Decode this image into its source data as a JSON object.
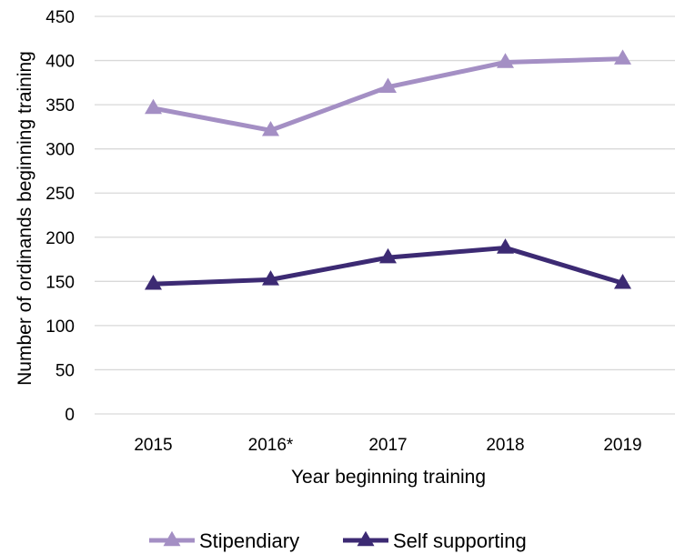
{
  "chart_data": {
    "type": "line",
    "categories": [
      "2015",
      "2016*",
      "2017",
      "2018",
      "2019"
    ],
    "series": [
      {
        "name": "Stipendiary",
        "values": [
          346,
          321,
          370,
          398,
          402
        ],
        "color": "#a48fc4",
        "marker": "triangle"
      },
      {
        "name": "Self supporting",
        "values": [
          147,
          152,
          177,
          188,
          148
        ],
        "color": "#3c2a73",
        "marker": "triangle"
      }
    ],
    "xlabel": "Year beginning training",
    "ylabel": "Number of ordinands beginning training",
    "ylim": [
      0,
      450
    ],
    "yticks": [
      0,
      50,
      100,
      150,
      200,
      250,
      300,
      350,
      400,
      450
    ],
    "grid": true,
    "legend": "bottom"
  }
}
